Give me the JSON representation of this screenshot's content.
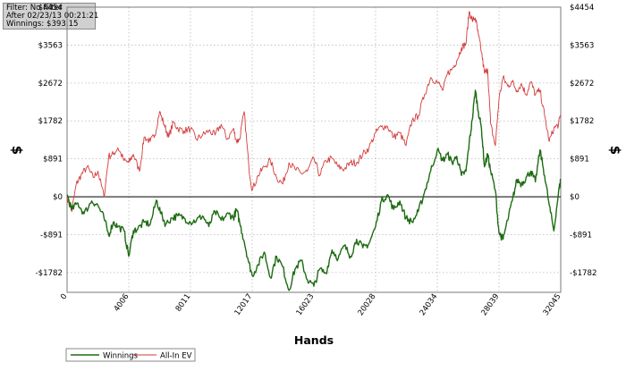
{
  "info_box": {
    "filter": "Filter: No Filter",
    "after": "After 02/23/13 00:21:21",
    "winnings": "Winnings: $393.15"
  },
  "colors": {
    "winnings": "#1d6b12",
    "all_in_ev": "#d43a3a",
    "grid": "#b9b9b9",
    "zero_line": "#000000",
    "axis": "#7a7a7a"
  },
  "chart_data": {
    "type": "line",
    "title": "",
    "xlabel": "Hands",
    "ylabel": "$",
    "y2label": "$",
    "xlim": [
      0,
      32045
    ],
    "ylim": [
      -2246,
      4454
    ],
    "grid": true,
    "legend_position": "bottom-left",
    "x_ticks": [
      0,
      4006,
      8011,
      12017,
      16023,
      20028,
      24034,
      28039,
      32045
    ],
    "y_ticks": [
      -1782,
      -891,
      0,
      891,
      1782,
      2672,
      3563,
      4454
    ],
    "y_tick_labels": [
      "-$1782",
      "-$891",
      "$0",
      "$891",
      "$1782",
      "$2672",
      "$3563",
      "$4454"
    ],
    "series": [
      {
        "name": "Winnings",
        "color": "#1d6b12",
        "x": [
          0,
          300,
          700,
          1100,
          1600,
          2000,
          2400,
          2700,
          3000,
          3300,
          3700,
          4006,
          4300,
          4600,
          5000,
          5400,
          5800,
          6100,
          6400,
          6800,
          7200,
          7600,
          8011,
          8400,
          8800,
          9200,
          9600,
          10000,
          10500,
          10800,
          11000,
          11200,
          11500,
          11800,
          12017,
          12400,
          12800,
          13200,
          13600,
          14000,
          14400,
          14800,
          15200,
          15600,
          16023,
          16400,
          16800,
          17200,
          17600,
          18000,
          18400,
          18800,
          19200,
          19600,
          20028,
          20400,
          20800,
          21200,
          21600,
          22000,
          22400,
          22800,
          23200,
          23600,
          24034,
          24400,
          24700,
          25000,
          25300,
          25600,
          25900,
          26100,
          26300,
          26500,
          26700,
          26900,
          27100,
          27300,
          27500,
          27800,
          28039,
          28300,
          28600,
          28900,
          29200,
          29500,
          29800,
          30100,
          30400,
          30700,
          31000,
          31300,
          31600,
          31900,
          32045
        ],
        "y": [
          50,
          -300,
          -150,
          -400,
          -100,
          -200,
          -500,
          -900,
          -600,
          -700,
          -800,
          -1400,
          -800,
          -750,
          -600,
          -650,
          -80,
          -400,
          -650,
          -500,
          -450,
          -500,
          -600,
          -550,
          -450,
          -700,
          -350,
          -550,
          -400,
          -500,
          -300,
          -600,
          -1050,
          -1550,
          -1850,
          -1600,
          -1300,
          -1900,
          -1400,
          -1650,
          -2200,
          -1700,
          -1500,
          -1950,
          -2100,
          -1700,
          -1800,
          -1250,
          -1450,
          -1150,
          -1400,
          -1000,
          -1200,
          -1100,
          -700,
          -100,
          50,
          -300,
          -100,
          -500,
          -600,
          -350,
          100,
          600,
          1100,
          850,
          1000,
          800,
          950,
          500,
          600,
          1250,
          1800,
          2500,
          2000,
          1600,
          700,
          1000,
          600,
          150,
          -850,
          -1000,
          -550,
          -100,
          400,
          300,
          450,
          600,
          350,
          1100,
          500,
          -200,
          -800,
          100,
          400
        ]
      },
      {
        "name": "All-In EV",
        "color": "#d43a3a",
        "x": [
          0,
          300,
          600,
          900,
          1300,
          1700,
          2000,
          2400,
          2700,
          3000,
          3300,
          3700,
          4006,
          4300,
          4700,
          5000,
          5400,
          5700,
          6000,
          6300,
          6600,
          6900,
          7200,
          7600,
          8011,
          8400,
          8800,
          9200,
          9600,
          10000,
          10400,
          10800,
          11000,
          11200,
          11500,
          11800,
          12017,
          12400,
          12800,
          13200,
          13600,
          14000,
          14400,
          14800,
          15200,
          15600,
          16023,
          16400,
          16800,
          17200,
          17600,
          18000,
          18400,
          18800,
          19200,
          19600,
          20028,
          20400,
          20800,
          21200,
          21600,
          22000,
          22400,
          22800,
          23200,
          23600,
          24034,
          24400,
          24700,
          25000,
          25300,
          25600,
          25900,
          26100,
          26300,
          26500,
          26700,
          26900,
          27100,
          27300,
          27500,
          27800,
          28039,
          28300,
          28600,
          28900,
          29200,
          29500,
          29800,
          30100,
          30400,
          30700,
          31000,
          31300,
          31600,
          31900,
          32045
        ],
        "y": [
          0,
          -350,
          300,
          500,
          700,
          450,
          600,
          0,
          950,
          1000,
          1150,
          850,
          800,
          1000,
          600,
          1400,
          1300,
          1450,
          2000,
          1700,
          1400,
          1750,
          1600,
          1550,
          1600,
          1350,
          1450,
          1550,
          1450,
          1700,
          1350,
          1600,
          1300,
          1350,
          2000,
          700,
          150,
          500,
          700,
          850,
          450,
          300,
          800,
          650,
          550,
          600,
          900,
          500,
          850,
          900,
          700,
          650,
          800,
          800,
          1000,
          1150,
          1500,
          1650,
          1650,
          1400,
          1500,
          1200,
          1800,
          1900,
          2400,
          2800,
          2700,
          2500,
          2900,
          3000,
          3200,
          3500,
          3600,
          4350,
          4150,
          4200,
          3800,
          3400,
          2900,
          3000,
          1700,
          1200,
          2300,
          2800,
          2600,
          2700,
          2500,
          2650,
          2400,
          2700,
          2400,
          2500,
          1900,
          1300,
          1600,
          1700,
          1950
        ]
      }
    ]
  }
}
